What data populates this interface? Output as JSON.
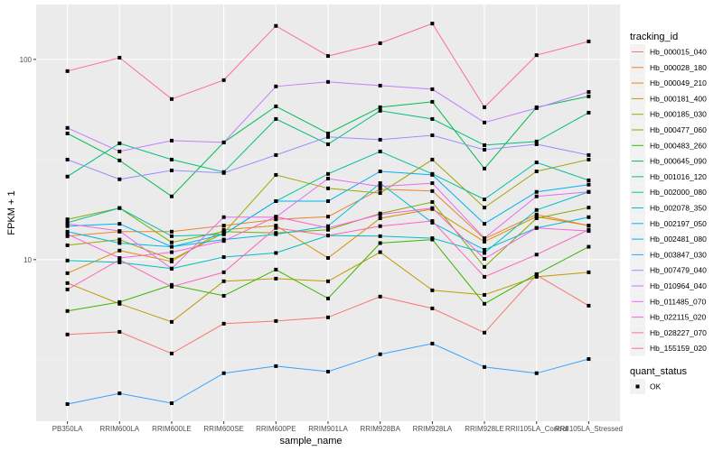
{
  "chart_data": {
    "type": "line",
    "title": "",
    "xlabel": "sample_name",
    "ylabel": "FPKM + 1",
    "y_scale": "log10",
    "ylim": [
      1.56,
      188
    ],
    "y_ticks": [
      10,
      100
    ],
    "y_tick_labels": [
      "10",
      "100"
    ],
    "grid": true,
    "legend_position": "right",
    "categories": [
      "PB350LA",
      "RRIM600LA",
      "RRIM600LE",
      "RRIM600SE",
      "RRIM600PE",
      "RRIM901LA",
      "RRIM928BA",
      "RRIM928LA",
      "RRIM928LE",
      "RRII105LA_Control",
      "RRII105LA_Stressed"
    ],
    "legend_title": "tracking_id",
    "series": [
      {
        "name": "Hb_000015_040",
        "color": "#F8766D",
        "values": [
          4.23,
          4.36,
          3.4,
          4.79,
          4.94,
          5.15,
          6.54,
          5.71,
          4.32,
          8.38,
          5.89
        ]
      },
      {
        "name": "Hb_000028_180",
        "color": "#EA8331",
        "values": [
          13.1,
          13.8,
          13.8,
          14.8,
          15.9,
          16.4,
          22.5,
          22.0,
          12.7,
          16.8,
          14.8
        ]
      },
      {
        "name": "Hb_000049_210",
        "color": "#D89000",
        "values": [
          8.56,
          11.1,
          9.79,
          14.1,
          14.8,
          10.2,
          16.1,
          17.9,
          12.3,
          16.4,
          14.8
        ]
      },
      {
        "name": "Hb_000181_400",
        "color": "#C09B00",
        "values": [
          7.64,
          6.02,
          4.89,
          7.8,
          8.04,
          7.8,
          10.9,
          7.03,
          6.67,
          8.21,
          8.65
        ]
      },
      {
        "name": "Hb_000185_030",
        "color": "#A3A500",
        "values": [
          11.8,
          12.6,
          10.0,
          13.6,
          26.5,
          22.7,
          21.5,
          31.6,
          18.2,
          27.6,
          31.6
        ]
      },
      {
        "name": "Hb_000477_060",
        "color": "#7CAE00",
        "values": [
          15.9,
          18.1,
          12.2,
          13.8,
          13.6,
          14.1,
          17.0,
          19.4,
          9.2,
          16.1,
          18.2
        ]
      },
      {
        "name": "Hb_000483_260",
        "color": "#39B600",
        "values": [
          5.54,
          6.14,
          7.48,
          6.6,
          8.92,
          6.4,
          12.1,
          12.6,
          6.02,
          8.47,
          11.6
        ]
      },
      {
        "name": "Hb_000645_090",
        "color": "#00BB4E",
        "values": [
          42.7,
          31.3,
          20.7,
          38.5,
          58.3,
          42.7,
          57.7,
          61.4,
          28.5,
          57.7,
          65.4
        ]
      },
      {
        "name": "Hb_001016_120",
        "color": "#00BF7D",
        "values": [
          26.0,
          38.1,
          31.6,
          27.4,
          50.4,
          37.7,
          55.4,
          50.4,
          37.3,
          38.9,
          54.2
        ]
      },
      {
        "name": "Hb_002000_080",
        "color": "#00C1A3",
        "values": [
          15.3,
          18.1,
          13.1,
          13.4,
          19.6,
          26.8,
          34.7,
          26.8,
          20.0,
          30.6,
          24.9
        ]
      },
      {
        "name": "Hb_002078_350",
        "color": "#00BFC4",
        "values": [
          9.9,
          9.69,
          9.02,
          10.3,
          10.8,
          13.2,
          13.1,
          12.8,
          10.8,
          17.7,
          21.8
        ]
      },
      {
        "name": "Hb_002197_050",
        "color": "#00BAE0",
        "values": [
          13.8,
          12.1,
          11.6,
          12.6,
          13.4,
          14.7,
          24.1,
          15.3,
          11.2,
          14.4,
          16.3
        ]
      },
      {
        "name": "Hb_002481_080",
        "color": "#00B0F6",
        "values": [
          14.7,
          15.1,
          11.6,
          13.4,
          19.6,
          19.6,
          27.6,
          26.5,
          15.1,
          21.8,
          23.7
        ]
      },
      {
        "name": "Hb_003847_030",
        "color": "#35A2FF",
        "values": [
          1.9,
          2.15,
          1.92,
          2.71,
          2.94,
          2.76,
          3.37,
          3.81,
          2.91,
          2.71,
          3.19
        ]
      },
      {
        "name": "Hb_007479_040",
        "color": "#9590FF",
        "values": [
          31.6,
          25.2,
          27.9,
          27.1,
          33.3,
          41.0,
          39.7,
          41.8,
          35.4,
          37.7,
          33.3
        ]
      },
      {
        "name": "Hb_010964_040",
        "color": "#C77CFF",
        "values": [
          45.5,
          34.7,
          39.3,
          38.5,
          73.3,
          77.2,
          74.0,
          71.0,
          48.4,
          57.1,
          68.8
        ]
      },
      {
        "name": "Hb_011485_070",
        "color": "#E76BF3",
        "values": [
          15.1,
          13.9,
          9.02,
          16.3,
          16.3,
          25.4,
          23.2,
          24.1,
          12.8,
          20.7,
          21.8
        ]
      },
      {
        "name": "Hb_022115_020",
        "color": "#FA62DB",
        "values": [
          13.4,
          10.2,
          10.9,
          12.4,
          16.4,
          14.4,
          16.8,
          18.1,
          10.1,
          14.4,
          13.9
        ]
      },
      {
        "name": "Hb_028227_070",
        "color": "#FF62BC",
        "values": [
          7.1,
          10.0,
          7.33,
          8.65,
          14.4,
          13.2,
          14.7,
          15.6,
          8.21,
          10.6,
          14.1
        ]
      },
      {
        "name": "Hb_155159_020",
        "color": "#FF6C91",
        "values": [
          87.4,
          102,
          63.4,
          78.8,
          147,
          104,
          120.5,
          151,
          57.7,
          105,
          123
        ]
      }
    ],
    "shape_legend": {
      "title": "quant_status",
      "items": [
        "OK"
      ]
    },
    "colors": {
      "panel": "#EBEBEB",
      "grid": "#FFFFFF",
      "point": "#000000"
    }
  }
}
